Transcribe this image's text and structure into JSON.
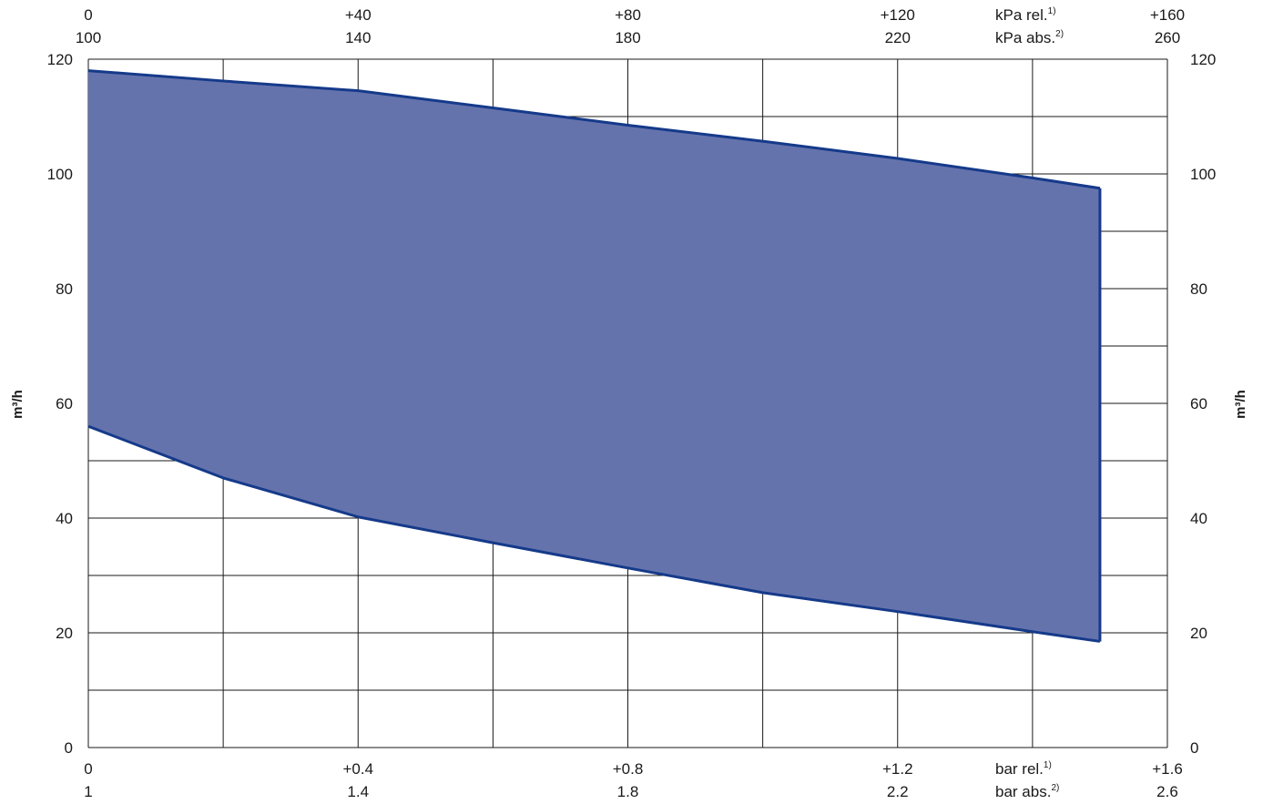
{
  "chart_data": {
    "type": "area",
    "title": "",
    "xlabel": "",
    "ylabel": "m³/h",
    "xlim": [
      0,
      1.6
    ],
    "ylim": [
      0,
      120
    ],
    "grid": true,
    "legend": "none",
    "fill_color": "#6573ad",
    "line_color": "#153a8a",
    "x": [
      0,
      0.2,
      0.4,
      0.6,
      0.8,
      1.0,
      1.2,
      1.4,
      1.5
    ],
    "series": [
      {
        "values": [
          118,
          116.2,
          114.5,
          111.5,
          108.5,
          105.7,
          102.7,
          99.3,
          97.5
        ]
      },
      {
        "values": [
          56,
          47,
          40.2,
          35.7,
          31.3,
          27.0,
          23.7,
          20.2,
          18.5
        ]
      }
    ],
    "y_ticks": [
      {
        "value": 0,
        "label": "0"
      },
      {
        "value": 20,
        "label": "20"
      },
      {
        "value": 40,
        "label": "40"
      },
      {
        "value": 60,
        "label": "60"
      },
      {
        "value": 80,
        "label": "80"
      },
      {
        "value": 100,
        "label": "100"
      },
      {
        "value": 120,
        "label": "120"
      }
    ],
    "x_bottom_ticks": [
      {
        "value": 0,
        "rel": "0",
        "abs": "1"
      },
      {
        "value": 0.4,
        "rel": "+0.4",
        "abs": "1.4"
      },
      {
        "value": 0.8,
        "rel": "+0.8",
        "abs": "1.8"
      },
      {
        "value": 1.2,
        "rel": "+1.2",
        "abs": "2.2"
      },
      {
        "value": 1.6,
        "rel": "+1.6",
        "abs": "2.6"
      }
    ],
    "x_top_ticks": [
      {
        "value": 0,
        "rel": "0",
        "abs": "100"
      },
      {
        "value": 0.4,
        "rel": "+40",
        "abs": "140"
      },
      {
        "value": 0.8,
        "rel": "+80",
        "abs": "180"
      },
      {
        "value": 1.2,
        "rel": "+120",
        "abs": "220"
      },
      {
        "value": 1.6,
        "rel": "+160",
        "abs": "260"
      }
    ],
    "bottom_units": {
      "rel": "bar rel.",
      "rel_note": "1)",
      "abs": "bar abs.",
      "abs_note": "2)"
    },
    "top_units": {
      "rel": "kPa rel.",
      "rel_note": "1)",
      "abs": "kPa abs.",
      "abs_note": "2)"
    }
  }
}
